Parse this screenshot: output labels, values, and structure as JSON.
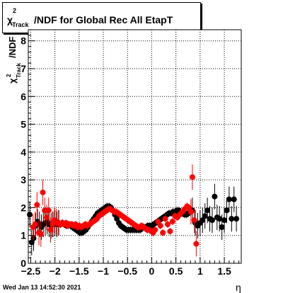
{
  "chart_data": {
    "type": "scatter",
    "title_main": "χ",
    "title_sup": "2",
    "title_sub": "Track",
    "title_rest": "/NDF for Global Rec All EtapT",
    "ylabel_main": "χ",
    "ylabel_sup": "2",
    "ylabel_sub": "Track",
    "ylabel_rest": "/NDF",
    "xlabel": "η",
    "xlim": [
      -2.55,
      1.85
    ],
    "ylim": [
      0,
      8.4
    ],
    "x_ticks": [
      "−2.5",
      "−2",
      "−1.5",
      "−1",
      "−0.5",
      "0",
      "0.5",
      "1",
      "1.5"
    ],
    "x_tick_values": [
      -2.5,
      -2,
      -1.5,
      -1,
      -0.5,
      0,
      0.5,
      1,
      1.5
    ],
    "y_ticks": [
      "0",
      "1",
      "2",
      "3",
      "4",
      "5",
      "6",
      "7",
      "8"
    ],
    "y_tick_values": [
      0,
      1,
      2,
      3,
      4,
      5,
      6,
      7,
      8
    ],
    "grid": true,
    "series": [
      {
        "color": "#000000",
        "points": [
          [
            -2.52,
            1.75
          ],
          [
            -2.48,
            0.75
          ],
          [
            -2.44,
            0.9
          ],
          [
            -2.4,
            1.35
          ],
          [
            -2.36,
            1.5
          ],
          [
            -2.32,
            1.4
          ],
          [
            -2.28,
            1.3
          ],
          [
            -2.24,
            1.4
          ],
          [
            -2.2,
            1.45
          ],
          [
            -2.16,
            1.5
          ],
          [
            -2.12,
            1.4
          ],
          [
            -2.08,
            1.35
          ],
          [
            -2.04,
            1.4
          ],
          [
            -2.0,
            1.45
          ],
          [
            -1.96,
            1.4
          ],
          [
            -1.92,
            1.45
          ],
          [
            -1.88,
            1.4
          ],
          [
            -1.84,
            1.45
          ],
          [
            -1.8,
            1.4
          ],
          [
            -1.76,
            1.35
          ],
          [
            -1.72,
            1.4
          ],
          [
            -1.68,
            1.35
          ],
          [
            -1.64,
            1.3
          ],
          [
            -1.6,
            1.25
          ],
          [
            -1.56,
            1.2
          ],
          [
            -1.52,
            1.15
          ],
          [
            -1.48,
            1.1
          ],
          [
            -1.44,
            1.1
          ],
          [
            -1.4,
            1.15
          ],
          [
            -1.36,
            1.2
          ],
          [
            -1.32,
            1.3
          ],
          [
            -1.28,
            1.4
          ],
          [
            -1.24,
            1.5
          ],
          [
            -1.2,
            1.6
          ],
          [
            -1.16,
            1.7
          ],
          [
            -1.12,
            1.8
          ],
          [
            -1.08,
            1.85
          ],
          [
            -1.04,
            1.9
          ],
          [
            -1.0,
            1.95
          ],
          [
            -0.96,
            2.0
          ],
          [
            -0.92,
            2.05
          ],
          [
            -0.88,
            2.05
          ],
          [
            -0.84,
            2.0
          ],
          [
            -0.8,
            1.9
          ],
          [
            -0.76,
            1.75
          ],
          [
            -0.72,
            1.6
          ],
          [
            -0.68,
            1.45
          ],
          [
            -0.64,
            1.35
          ],
          [
            -0.6,
            1.3
          ],
          [
            -0.56,
            1.25
          ],
          [
            -0.52,
            1.2
          ],
          [
            -0.48,
            1.2
          ],
          [
            -0.44,
            1.2
          ],
          [
            -0.4,
            1.2
          ],
          [
            -0.36,
            1.2
          ],
          [
            -0.32,
            1.2
          ],
          [
            -0.28,
            1.2
          ],
          [
            -0.24,
            1.2
          ],
          [
            -0.2,
            1.25
          ],
          [
            -0.16,
            1.3
          ],
          [
            -0.12,
            1.3
          ],
          [
            -0.08,
            1.35
          ],
          [
            -0.04,
            1.35
          ],
          [
            0.0,
            1.35
          ],
          [
            0.04,
            1.4
          ],
          [
            0.08,
            1.45
          ],
          [
            0.12,
            1.5
          ],
          [
            0.16,
            1.55
          ],
          [
            0.2,
            1.6
          ],
          [
            0.24,
            1.65
          ],
          [
            0.28,
            1.7
          ],
          [
            0.32,
            1.75
          ],
          [
            0.36,
            1.8
          ],
          [
            0.4,
            1.8
          ],
          [
            0.44,
            1.85
          ],
          [
            0.48,
            1.85
          ],
          [
            0.52,
            1.9
          ],
          [
            0.56,
            1.9
          ],
          [
            0.6,
            1.85
          ],
          [
            0.64,
            1.8
          ],
          [
            0.68,
            1.75
          ],
          [
            0.72,
            1.75
          ],
          [
            0.76,
            1.8
          ],
          [
            0.8,
            1.85
          ],
          [
            0.84,
            1.9
          ],
          [
            0.9,
            1.45
          ],
          [
            0.95,
            1.35
          ],
          [
            1.0,
            1.45
          ],
          [
            1.05,
            1.55
          ],
          [
            1.1,
            1.7
          ],
          [
            1.15,
            1.9
          ],
          [
            1.2,
            1.6
          ],
          [
            1.25,
            1.55
          ],
          [
            1.3,
            2.4
          ],
          [
            1.35,
            1.65
          ],
          [
            1.4,
            1.6
          ],
          [
            1.45,
            1.3
          ],
          [
            1.5,
            1.55
          ],
          [
            1.55,
            1.9
          ],
          [
            1.6,
            2.3
          ],
          [
            1.65,
            1.6
          ],
          [
            1.7,
            2.3
          ],
          [
            1.75,
            1.6
          ]
        ]
      },
      {
        "color": "#ff0000",
        "points": [
          [
            -2.45,
            1.3
          ],
          [
            -2.41,
            1.4
          ],
          [
            -2.37,
            2.1
          ],
          [
            -2.33,
            1.1
          ],
          [
            -2.29,
            1.05
          ],
          [
            -2.25,
            2.55
          ],
          [
            -2.21,
            1.9
          ],
          [
            -2.17,
            1.65
          ],
          [
            -2.13,
            1.9
          ],
          [
            -2.09,
            1.2
          ],
          [
            -2.05,
            1.4
          ],
          [
            -2.01,
            1.55
          ],
          [
            -1.97,
            1.5
          ],
          [
            -1.93,
            1.45
          ],
          [
            -1.89,
            1.4
          ],
          [
            -1.85,
            1.45
          ],
          [
            -1.81,
            1.4
          ],
          [
            -1.77,
            1.45
          ],
          [
            -1.73,
            1.35
          ],
          [
            -1.69,
            1.4
          ],
          [
            -1.65,
            1.4
          ],
          [
            -1.61,
            1.35
          ],
          [
            -1.57,
            1.4
          ],
          [
            -1.53,
            1.3
          ],
          [
            -1.49,
            1.35
          ],
          [
            -1.45,
            1.3
          ],
          [
            -1.41,
            1.35
          ],
          [
            -1.37,
            1.4
          ],
          [
            -1.33,
            1.35
          ],
          [
            -1.29,
            1.4
          ],
          [
            -1.25,
            1.45
          ],
          [
            -1.21,
            1.5
          ],
          [
            -1.17,
            1.55
          ],
          [
            -1.13,
            1.6
          ],
          [
            -1.09,
            1.7
          ],
          [
            -1.05,
            1.75
          ],
          [
            -1.01,
            1.8
          ],
          [
            -0.97,
            1.85
          ],
          [
            -0.93,
            1.9
          ],
          [
            -0.89,
            1.95
          ],
          [
            -0.85,
            1.95
          ],
          [
            -0.81,
            1.9
          ],
          [
            -0.77,
            1.85
          ],
          [
            -0.73,
            1.85
          ],
          [
            -0.69,
            1.8
          ],
          [
            -0.65,
            1.75
          ],
          [
            -0.61,
            1.7
          ],
          [
            -0.57,
            1.65
          ],
          [
            -0.53,
            1.6
          ],
          [
            -0.49,
            1.55
          ],
          [
            -0.45,
            1.5
          ],
          [
            -0.41,
            1.45
          ],
          [
            -0.37,
            1.4
          ],
          [
            -0.33,
            1.35
          ],
          [
            -0.29,
            1.3
          ],
          [
            -0.25,
            1.3
          ],
          [
            -0.21,
            1.35
          ],
          [
            -0.17,
            1.3
          ],
          [
            -0.13,
            1.25
          ],
          [
            -0.09,
            1.2
          ],
          [
            -0.05,
            1.2
          ],
          [
            -0.01,
            1.15
          ],
          [
            0.03,
            1.1
          ],
          [
            0.07,
            1.2
          ],
          [
            0.13,
            1.5
          ],
          [
            0.18,
            1.35
          ],
          [
            0.23,
            1.1
          ],
          [
            0.28,
            1.6
          ],
          [
            0.33,
            1.4
          ],
          [
            0.38,
            1.15
          ],
          [
            0.43,
            1.5
          ],
          [
            0.48,
            1.7
          ],
          [
            0.53,
            1.65
          ],
          [
            0.58,
            1.75
          ],
          [
            0.63,
            1.85
          ],
          [
            0.68,
            1.95
          ],
          [
            0.73,
            2.05
          ],
          [
            0.77,
            2.0
          ],
          [
            0.81,
            1.85
          ],
          [
            0.84,
            3.1
          ],
          [
            0.88,
            1.55
          ],
          [
            0.92,
            0.7
          ]
        ]
      }
    ]
  },
  "timestamp": "Wed Jan 13 14:52:30 2021"
}
